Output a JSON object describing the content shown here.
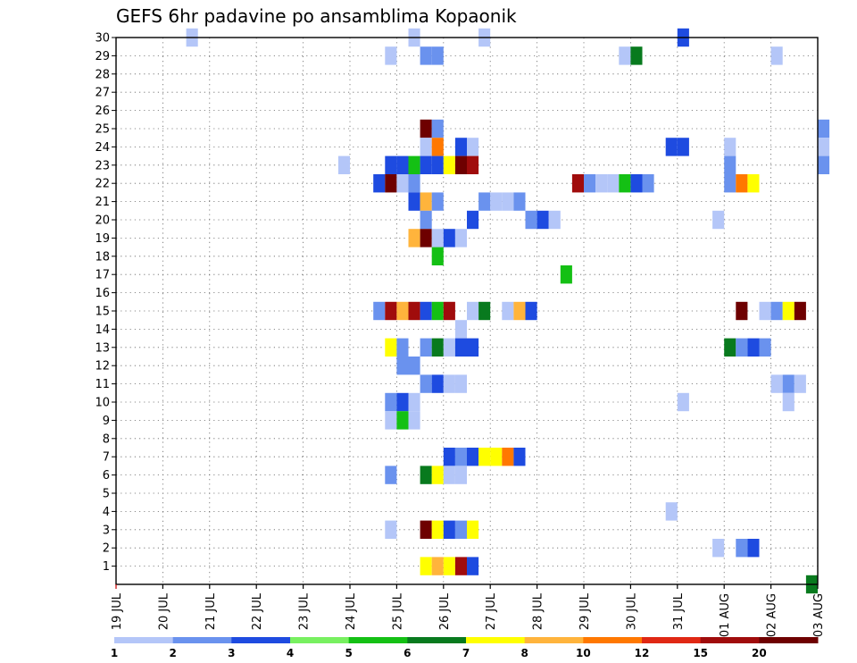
{
  "chart_data": {
    "type": "heatmap",
    "title": "GEFS 6hr padavine po ansamblima Kopaonik",
    "xlabel": "",
    "ylabel": "",
    "x_ticks": [
      "19 JUL",
      "20 JUL",
      "21 JUL",
      "22 JUL",
      "23 JUL",
      "24 JUL",
      "25 JUL",
      "26 JUL",
      "27 JUL",
      "28 JUL",
      "29 JUL",
      "30 JUL",
      "31 JUL",
      "01 AUG",
      "02 AUG",
      "03 AUG"
    ],
    "y_ticks": [
      1,
      2,
      3,
      4,
      5,
      6,
      7,
      8,
      9,
      10,
      11,
      12,
      13,
      14,
      15,
      16,
      17,
      18,
      19,
      20,
      21,
      22,
      23,
      24,
      25,
      26,
      27,
      28,
      29,
      30
    ],
    "y_range": [
      0,
      30
    ],
    "x_range": [
      "19 JUL 00Z",
      "03 AUG 00Z"
    ],
    "time_step_hours": 6,
    "grid": true,
    "legend": {
      "placement": "bottom",
      "labels": [
        "1",
        "2",
        "3",
        "4",
        "5",
        "6",
        "7",
        "8",
        "10",
        "12",
        "15",
        "20"
      ],
      "colors": [
        "#b4c6f8",
        "#6a92ee",
        "#1e4be0",
        "#78f060",
        "#14c014",
        "#087a1e",
        "#ffff00",
        "#ffb43c",
        "#ff7800",
        "#e02814",
        "#a00c0c",
        "#6e0000"
      ]
    },
    "series": [
      {
        "member": 30,
        "cells": [
          [
            "20 JUL 12Z",
            1
          ],
          [
            "25 JUL 06Z",
            1
          ],
          [
            "26 JUL 18Z",
            1
          ],
          [
            "31 JUL 00Z",
            3
          ]
        ]
      },
      {
        "member": 29,
        "cells": [
          [
            "24 JUL 18Z",
            1
          ],
          [
            "25 JUL 12Z",
            2
          ],
          [
            "25 JUL 18Z",
            2
          ],
          [
            "29 JUL 18Z",
            1
          ],
          [
            "30 JUL 00Z",
            6
          ],
          [
            "02 AUG 00Z",
            1
          ]
        ]
      },
      {
        "member": 25,
        "cells": [
          [
            "25 JUL 12Z",
            20
          ],
          [
            "25 JUL 18Z",
            2
          ],
          [
            "03 AUG 00Z",
            2
          ]
        ]
      },
      {
        "member": 24,
        "cells": [
          [
            "25 JUL 12Z",
            1
          ],
          [
            "25 JUL 18Z",
            10
          ],
          [
            "26 JUL 06Z",
            3
          ],
          [
            "26 JUL 12Z",
            1
          ],
          [
            "30 JUL 18Z",
            3
          ],
          [
            "31 JUL 00Z",
            3
          ],
          [
            "01 AUG 00Z",
            1
          ],
          [
            "03 AUG 00Z",
            1
          ]
        ]
      },
      {
        "member": 23,
        "cells": [
          [
            "23 JUL 18Z",
            1
          ],
          [
            "24 JUL 18Z",
            3
          ],
          [
            "25 JUL 00Z",
            3
          ],
          [
            "25 JUL 06Z",
            5
          ],
          [
            "25 JUL 12Z",
            3
          ],
          [
            "25 JUL 18Z",
            3
          ],
          [
            "26 JUL 00Z",
            7
          ],
          [
            "26 JUL 06Z",
            20
          ],
          [
            "26 JUL 12Z",
            15
          ],
          [
            "01 AUG 00Z",
            2
          ],
          [
            "03 AUG 00Z",
            2
          ]
        ]
      },
      {
        "member": 22,
        "cells": [
          [
            "24 JUL 12Z",
            3
          ],
          [
            "24 JUL 18Z",
            20
          ],
          [
            "25 JUL 00Z",
            1
          ],
          [
            "25 JUL 06Z",
            2
          ],
          [
            "28 JUL 18Z",
            15
          ],
          [
            "29 JUL 00Z",
            2
          ],
          [
            "29 JUL 06Z",
            1
          ],
          [
            "29 JUL 12Z",
            1
          ],
          [
            "29 JUL 18Z",
            5
          ],
          [
            "30 JUL 00Z",
            3
          ],
          [
            "30 JUL 06Z",
            2
          ],
          [
            "01 AUG 00Z",
            2
          ],
          [
            "01 AUG 06Z",
            10
          ],
          [
            "01 AUG 12Z",
            7
          ]
        ]
      },
      {
        "member": 21,
        "cells": [
          [
            "25 JUL 06Z",
            3
          ],
          [
            "25 JUL 12Z",
            8
          ],
          [
            "25 JUL 18Z",
            2
          ],
          [
            "26 JUL 18Z",
            2
          ],
          [
            "27 JUL 00Z",
            1
          ],
          [
            "27 JUL 06Z",
            1
          ],
          [
            "27 JUL 12Z",
            2
          ]
        ]
      },
      {
        "member": 20,
        "cells": [
          [
            "25 JUL 12Z",
            2
          ],
          [
            "26 JUL 12Z",
            3
          ],
          [
            "27 JUL 18Z",
            2
          ],
          [
            "28 JUL 00Z",
            3
          ],
          [
            "28 JUL 06Z",
            1
          ],
          [
            "31 JUL 18Z",
            1
          ]
        ]
      },
      {
        "member": 19,
        "cells": [
          [
            "25 JUL 06Z",
            8
          ],
          [
            "25 JUL 12Z",
            20
          ],
          [
            "25 JUL 18Z",
            1
          ],
          [
            "26 JUL 00Z",
            3
          ],
          [
            "26 JUL 06Z",
            1
          ]
        ]
      },
      {
        "member": 18,
        "cells": [
          [
            "25 JUL 18Z",
            5
          ]
        ]
      },
      {
        "member": 17,
        "cells": [
          [
            "28 JUL 12Z",
            5
          ]
        ]
      },
      {
        "member": 15,
        "cells": [
          [
            "24 JUL 12Z",
            2
          ],
          [
            "24 JUL 18Z",
            15
          ],
          [
            "25 JUL 00Z",
            8
          ],
          [
            "25 JUL 06Z",
            15
          ],
          [
            "25 JUL 12Z",
            3
          ],
          [
            "25 JUL 18Z",
            5
          ],
          [
            "26 JUL 00Z",
            15
          ],
          [
            "26 JUL 12Z",
            1
          ],
          [
            "26 JUL 18Z",
            6
          ],
          [
            "27 JUL 06Z",
            1
          ],
          [
            "27 JUL 12Z",
            8
          ],
          [
            "27 JUL 18Z",
            3
          ],
          [
            "01 AUG 06Z",
            20
          ],
          [
            "01 AUG 18Z",
            1
          ],
          [
            "02 AUG 00Z",
            2
          ],
          [
            "02 AUG 06Z",
            7
          ],
          [
            "02 AUG 12Z",
            20
          ]
        ]
      },
      {
        "member": 14,
        "cells": [
          [
            "26 JUL 06Z",
            1
          ]
        ]
      },
      {
        "member": 13,
        "cells": [
          [
            "24 JUL 18Z",
            7
          ],
          [
            "25 JUL 00Z",
            2
          ],
          [
            "25 JUL 12Z",
            2
          ],
          [
            "25 JUL 18Z",
            6
          ],
          [
            "26 JUL 00Z",
            1
          ],
          [
            "26 JUL 06Z",
            3
          ],
          [
            "26 JUL 12Z",
            3
          ],
          [
            "01 AUG 00Z",
            6
          ],
          [
            "01 AUG 06Z",
            2
          ],
          [
            "01 AUG 12Z",
            3
          ],
          [
            "01 AUG 18Z",
            2
          ]
        ]
      },
      {
        "member": 12,
        "cells": [
          [
            "25 JUL 00Z",
            2
          ],
          [
            "25 JUL 06Z",
            2
          ]
        ]
      },
      {
        "member": 11,
        "cells": [
          [
            "25 JUL 12Z",
            2
          ],
          [
            "25 JUL 18Z",
            3
          ],
          [
            "26 JUL 00Z",
            1
          ],
          [
            "26 JUL 06Z",
            1
          ],
          [
            "02 AUG 00Z",
            1
          ],
          [
            "02 AUG 06Z",
            2
          ],
          [
            "02 AUG 12Z",
            1
          ]
        ]
      },
      {
        "member": 10,
        "cells": [
          [
            "24 JUL 18Z",
            2
          ],
          [
            "25 JUL 00Z",
            3
          ],
          [
            "25 JUL 06Z",
            1
          ],
          [
            "31 JUL 00Z",
            1
          ],
          [
            "02 AUG 06Z",
            1
          ]
        ]
      },
      {
        "member": 9,
        "cells": [
          [
            "24 JUL 18Z",
            1
          ],
          [
            "25 JUL 00Z",
            5
          ],
          [
            "25 JUL 06Z",
            1
          ]
        ]
      },
      {
        "member": 7,
        "cells": [
          [
            "26 JUL 00Z",
            3
          ],
          [
            "26 JUL 06Z",
            2
          ],
          [
            "26 JUL 12Z",
            3
          ],
          [
            "26 JUL 18Z",
            7
          ],
          [
            "27 JUL 00Z",
            7
          ],
          [
            "27 JUL 06Z",
            10
          ],
          [
            "27 JUL 12Z",
            3
          ]
        ]
      },
      {
        "member": 6,
        "cells": [
          [
            "24 JUL 18Z",
            2
          ],
          [
            "25 JUL 12Z",
            6
          ],
          [
            "25 JUL 18Z",
            7
          ],
          [
            "26 JUL 00Z",
            1
          ],
          [
            "26 JUL 06Z",
            1
          ]
        ]
      },
      {
        "member": 4,
        "cells": [
          [
            "30 JUL 18Z",
            1
          ]
        ]
      },
      {
        "member": 3,
        "cells": [
          [
            "24 JUL 18Z",
            1
          ],
          [
            "25 JUL 12Z",
            20
          ],
          [
            "25 JUL 18Z",
            7
          ],
          [
            "26 JUL 00Z",
            3
          ],
          [
            "26 JUL 06Z",
            2
          ],
          [
            "26 JUL 12Z",
            7
          ]
        ]
      },
      {
        "member": 2,
        "cells": [
          [
            "31 JUL 18Z",
            1
          ],
          [
            "01 AUG 06Z",
            2
          ],
          [
            "01 AUG 12Z",
            3
          ]
        ]
      },
      {
        "member": 1,
        "cells": [
          [
            "25 JUL 12Z",
            7
          ],
          [
            "25 JUL 18Z",
            8
          ],
          [
            "26 JUL 00Z",
            7
          ],
          [
            "26 JUL 06Z",
            15
          ],
          [
            "26 JUL 12Z",
            3
          ]
        ]
      },
      {
        "member": 0,
        "cells": [
          [
            "02 AUG 18Z",
            6
          ]
        ]
      }
    ]
  }
}
